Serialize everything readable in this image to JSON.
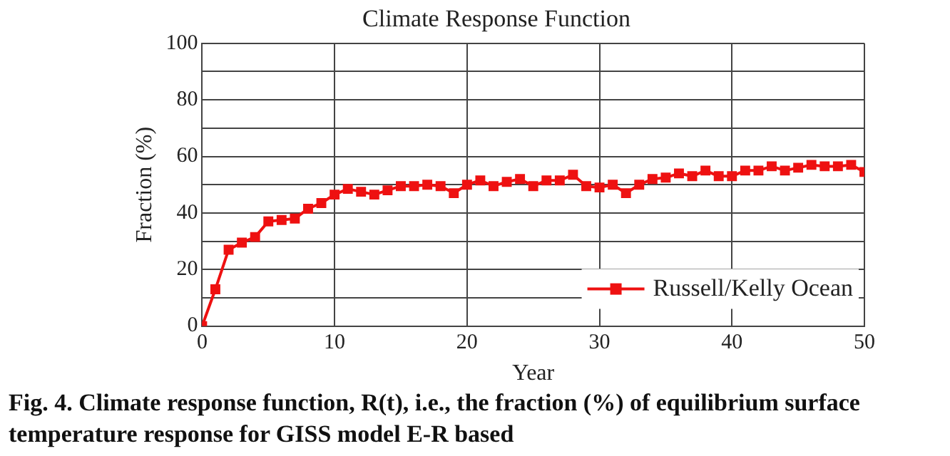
{
  "chart_data": {
    "type": "line",
    "title": "Climate Response Function",
    "xlabel": "Year",
    "ylabel": "Fraction (%)",
    "annotations": [
      "Fig. 4.  Climate response function, R(t), i.e., the fraction (%) of equilibrium surface temperature response for GISS model E-R based"
    ],
    "x": [
      0,
      1,
      2,
      3,
      4,
      5,
      6,
      7,
      8,
      9,
      10,
      11,
      12,
      13,
      14,
      15,
      16,
      17,
      18,
      19,
      20,
      21,
      22,
      23,
      24,
      25,
      26,
      27,
      28,
      29,
      30,
      31,
      32,
      33,
      34,
      35,
      36,
      37,
      38,
      39,
      40,
      41,
      42,
      43,
      44,
      45,
      46,
      47,
      48,
      49,
      50
    ],
    "series": [
      {
        "name": "Russell/Kelly Ocean",
        "color": "#ee1111",
        "values": [
          0,
          13,
          27,
          29.5,
          31.5,
          37,
          37.5,
          38,
          41.5,
          43.5,
          46.5,
          48.5,
          47.5,
          46.5,
          48,
          49.5,
          49.5,
          50,
          49.5,
          47,
          50,
          51.5,
          49.5,
          51,
          52,
          49.5,
          51.5,
          51.5,
          53.5,
          49.5,
          49,
          50,
          47,
          50,
          52,
          52.5,
          54,
          53,
          55,
          53,
          53,
          55,
          55,
          56.5,
          55,
          56,
          57,
          56.5,
          56.5,
          57,
          54.5
        ]
      }
    ],
    "xlim": [
      0,
      50
    ],
    "xticks": [
      0,
      10,
      20,
      30,
      40,
      50
    ],
    "ylim": [
      0,
      100
    ],
    "yticks": [
      0,
      {
        "value": 10,
        "label": null
      },
      20,
      {
        "value": 30,
        "label": null
      },
      40,
      {
        "value": 50,
        "label": null
      },
      60,
      {
        "value": 70,
        "label": null
      },
      80,
      {
        "value": 90,
        "label": null
      },
      100
    ],
    "grid": true,
    "legend": "bottom right",
    "marker": "square",
    "line_style": "solid"
  }
}
